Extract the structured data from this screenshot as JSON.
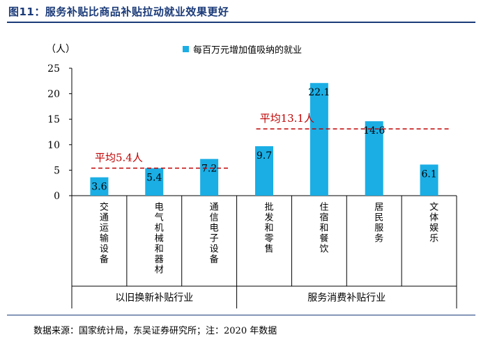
{
  "figure_title": "图11：服务补贴比商品补贴拉动就业效果更好",
  "footnote": "数据来源：国家统计局，东吴证券研究所；注：2020 年数据",
  "chart_data": {
    "type": "bar",
    "ylabel": "（人）",
    "ylim": [
      0,
      25
    ],
    "yticks": [
      0,
      5,
      10,
      15,
      20,
      25
    ],
    "grid": false,
    "legend_position": "top",
    "categories": [
      "交通运输设备",
      "电气机械和器材",
      "通信电子设备",
      "批发和零售",
      "住宿和餐饮",
      "居民服务",
      "文体娱乐"
    ],
    "series": [
      {
        "name": "每百万元增加值吸纳的就业",
        "values": [
          3.6,
          5.4,
          7.2,
          9.7,
          22.1,
          14.6,
          6.1
        ],
        "color": "#1aaee5"
      }
    ],
    "value_labels": [
      "3.6",
      "5.4",
      "7.2",
      "9.7",
      "22.1",
      "14.6",
      "6.1"
    ],
    "groups": [
      {
        "label": "以旧换新补贴行业",
        "start": 0,
        "end": 2
      },
      {
        "label": "服务消费补贴行业",
        "start": 3,
        "end": 6
      }
    ],
    "reference_lines": [
      {
        "label": "平均5.4人",
        "value": 5.4,
        "from": 0,
        "to": 2,
        "color": "#c00000"
      },
      {
        "label": "平均13.1人",
        "value": 13.1,
        "from": 3,
        "to": 6,
        "color": "#c00000"
      }
    ]
  }
}
